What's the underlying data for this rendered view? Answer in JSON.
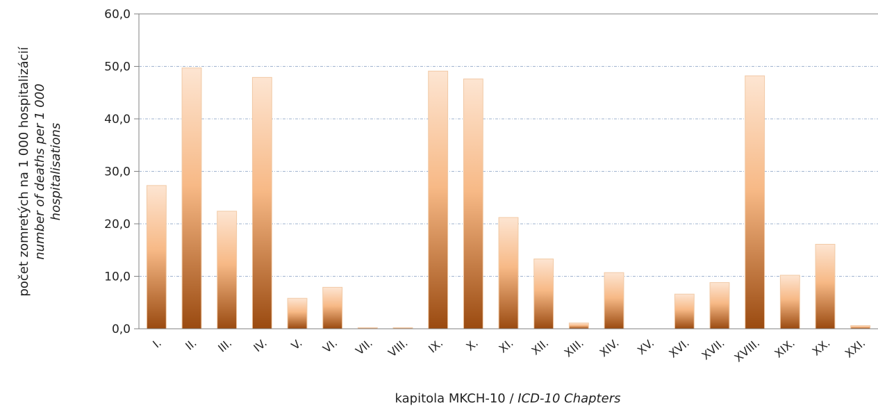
{
  "chart_data": {
    "type": "bar",
    "categories": [
      "I.",
      "II.",
      "III.",
      "IV.",
      "V.",
      "VI.",
      "VII.",
      "VIII.",
      "IX.",
      "X.",
      "XI.",
      "XII.",
      "XIII.",
      "XIV.",
      "XV.",
      "XVI.",
      "XVII.",
      "XVIII.",
      "XIX.",
      "XX.",
      "XXI."
    ],
    "values": [
      27.3,
      49.7,
      22.4,
      47.9,
      5.8,
      7.9,
      0.2,
      0.2,
      49.1,
      47.6,
      21.2,
      13.3,
      1.1,
      10.7,
      0.0,
      6.6,
      8.8,
      48.2,
      10.2,
      16.1,
      0.6
    ],
    "ylim": [
      0,
      60
    ],
    "yticks": [
      "0,0",
      "10,0",
      "20,0",
      "30,0",
      "40,0",
      "50,0",
      "60,0"
    ],
    "xlabel": {
      "normal": "kapitola MKCH-10 / ",
      "italic": "ICD-10 Chapters"
    },
    "ylabel": {
      "line1": "počet zomretých na 1 000 hospitalizácií",
      "line2": "number of deaths per 1 000",
      "line3": "hospitalisations"
    },
    "grid": true,
    "legend": "none",
    "colors": {
      "bar_top": "#fde5d2",
      "bar_mid": "#f7b986",
      "bar_bottom": "#9a4a10",
      "bar_edge": "#f1c9a5",
      "grid": "#9fb3cf",
      "axis": "#808080"
    }
  }
}
